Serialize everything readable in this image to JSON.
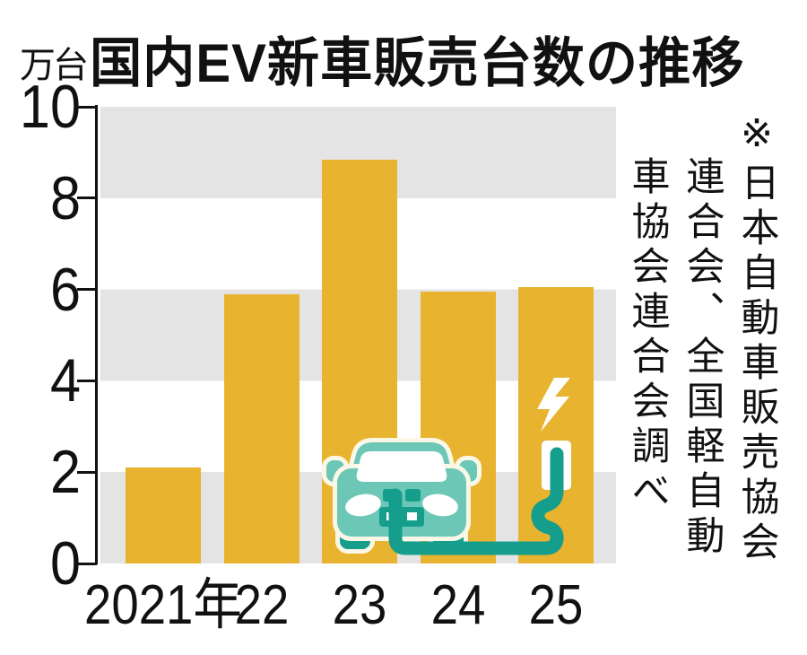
{
  "title": "国内EV新車販売台数の推移",
  "y_unit": "万台",
  "source_lines": [
    "※日本自動車販売協会",
    "連合会、全国軽自動",
    "車協会連合会調べ"
  ],
  "chart_data": {
    "type": "bar",
    "title": "国内EV新車販売台数の推移",
    "ylabel": "万台",
    "categories": [
      "2021年",
      "22",
      "23",
      "24",
      "25"
    ],
    "values": [
      2.1,
      5.9,
      8.85,
      5.95,
      6.05
    ],
    "ylim": [
      0,
      10
    ],
    "yticks": [
      0,
      2,
      4,
      6,
      8,
      10
    ],
    "grid": "horizontal gray bands every 2 units (0-2, 4-6, 8-10)",
    "legend": false,
    "source": "※日本自動車販売協会連合会、全国軽自動車協会連合会調べ",
    "annotation": "teal EV car with charging cable and charging outlet with lightning bolt drawn over the bars"
  },
  "colors": {
    "bar": "#E8B32F",
    "band": "#E4E4E4",
    "ink": "#111111",
    "car_teal": "#6CC7B7",
    "car_dark_teal": "#149E8B",
    "car_outline_cream": "#FBF7E6",
    "white": "#FFFFFF"
  }
}
